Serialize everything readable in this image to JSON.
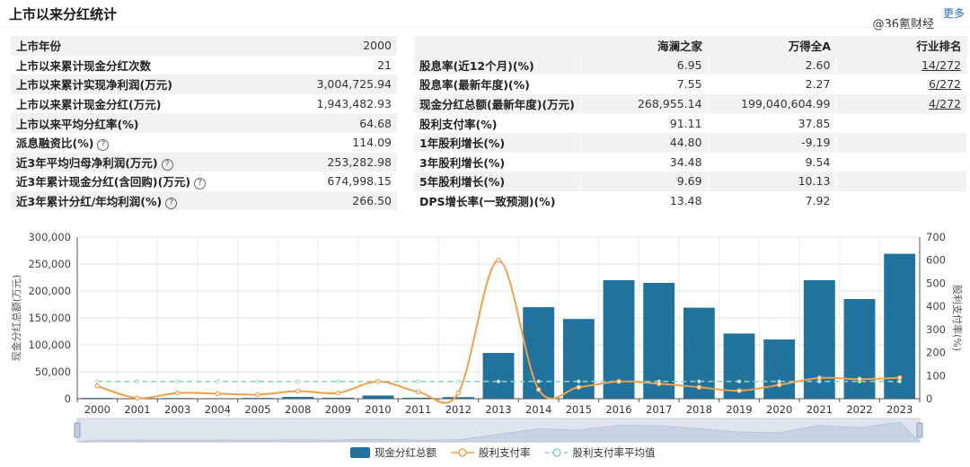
{
  "header": {
    "title": "上市以来分红统计",
    "more_label": "更多",
    "watermark": "@36氪财经"
  },
  "left_table": {
    "rows": [
      {
        "label": "上市年份",
        "value": "2000",
        "help": false
      },
      {
        "label": "上市以来累计现金分红次数",
        "value": "21",
        "help": false
      },
      {
        "label": "上市以来累计实现净利润(万元)",
        "value": "3,004,725.94",
        "help": false
      },
      {
        "label": "上市以来累计现金分红(万元)",
        "value": "1,943,482.93",
        "help": false
      },
      {
        "label": "上市以来平均分红率(%)",
        "value": "64.68",
        "help": false
      },
      {
        "label": "派息融资比(%)",
        "value": "114.09",
        "help": true
      },
      {
        "label": "近3年平均归母净利润(万元)",
        "value": "253,282.98",
        "help": true
      },
      {
        "label": "近3年累计现金分红(含回购)(万元)",
        "value": "674,998.15",
        "help": true
      },
      {
        "label": "近3年累计分红/年均利润(%)",
        "value": "266.50",
        "help": true
      }
    ]
  },
  "right_table": {
    "headers": [
      "",
      "海澜之家",
      "万得全A",
      "行业排名"
    ],
    "rows": [
      {
        "label": "股息率(近12个月)(%)",
        "company": "6.95",
        "market": "2.60",
        "rank": "14/272"
      },
      {
        "label": "股息率(最新年度)(%)",
        "company": "7.55",
        "market": "2.27",
        "rank": "6/272"
      },
      {
        "label": "现金分红总额(最新年度)(万元)",
        "company": "268,955.14",
        "market": "199,040,604.99",
        "rank": "4/272"
      },
      {
        "label": "股利支付率(%)",
        "company": "91.11",
        "market": "37.85",
        "rank": ""
      },
      {
        "label": "1年股利增长(%)",
        "company": "44.80",
        "market": "-9.19",
        "rank": ""
      },
      {
        "label": "3年股利增长(%)",
        "company": "34.48",
        "market": "9.54",
        "rank": ""
      },
      {
        "label": "5年股利增长(%)",
        "company": "9.69",
        "market": "10.13",
        "rank": ""
      },
      {
        "label": "DPS增长率(一致预测)(%)",
        "company": "13.48",
        "market": "7.92",
        "rank": ""
      }
    ]
  },
  "help_symbol": "?",
  "chart_data": {
    "type": "bar",
    "categories": [
      "2000",
      "2001",
      "2003",
      "2004",
      "2005",
      "2008",
      "2009",
      "2010",
      "2011",
      "2012",
      "2013",
      "2014",
      "2015",
      "2016",
      "2017",
      "2018",
      "2019",
      "2020",
      "2021",
      "2022",
      "2023"
    ],
    "series": [
      {
        "name": "现金分红总额",
        "type": "bar",
        "axis": "left",
        "values": [
          1500,
          800,
          1200,
          1000,
          1500,
          3500,
          2000,
          6000,
          2000,
          3000,
          85000,
          170000,
          148000,
          220000,
          215000,
          169000,
          121000,
          110000,
          220000,
          185000,
          269000
        ]
      },
      {
        "name": "股利支付率",
        "type": "line",
        "axis": "right",
        "values": [
          55,
          3,
          25,
          22,
          18,
          33,
          25,
          75,
          30,
          25,
          600,
          40,
          50,
          75,
          65,
          50,
          35,
          60,
          90,
          85,
          91
        ]
      },
      {
        "name": "股利支付率平均值",
        "type": "line",
        "axis": "right",
        "dashed": true,
        "values": [
          75,
          75,
          75,
          75,
          75,
          75,
          75,
          75,
          75,
          75,
          75,
          75,
          75,
          75,
          75,
          75,
          75,
          75,
          75,
          75,
          75
        ]
      }
    ],
    "ylabel": "现金分红总额(万元)",
    "y2label": "股利支付率(%)",
    "ylim": [
      0,
      300000
    ],
    "y2lim": [
      0,
      700
    ],
    "y_ticks": [
      "0",
      "50,000",
      "100,000",
      "150,000",
      "200,000",
      "250,000",
      "300,000"
    ],
    "y2_ticks": [
      "0",
      "100",
      "200",
      "300",
      "400",
      "500",
      "600",
      "700"
    ],
    "legend": [
      "现金分红总额",
      "股利支付率",
      "股利支付率平均值"
    ],
    "colors": {
      "bar": "#21729c",
      "line": "#f0a04b",
      "avg": "#8ccfc4",
      "grid": "#e6e6e6",
      "axis": "#555555"
    }
  }
}
